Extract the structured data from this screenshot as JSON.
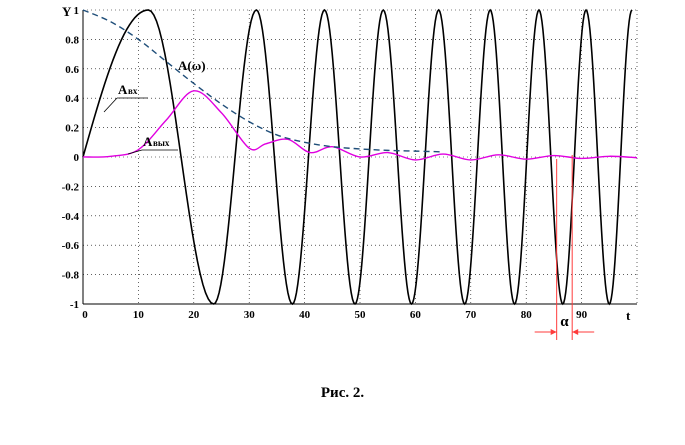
{
  "chart_data": {
    "type": "line",
    "title": "",
    "xlabel": "t",
    "ylabel": "Y",
    "xlim": [
      0,
      100
    ],
    "ylim": [
      -1,
      1
    ],
    "x_ticks": [
      0,
      10,
      20,
      30,
      40,
      50,
      60,
      70,
      80,
      90
    ],
    "y_ticks": [
      -1,
      -0.8,
      -0.6,
      -0.4,
      -0.2,
      0,
      0.2,
      0.4,
      0.6,
      0.8,
      1
    ],
    "x_tick_labels": [
      "0",
      "10",
      "20",
      "30",
      "40",
      "50",
      "60",
      "70",
      "80",
      "90"
    ],
    "y_tick_labels": [
      "-1",
      "-0.8",
      "-0.6",
      "-0.4",
      "-0.2",
      "0",
      "0.2",
      "0.4",
      "0.6",
      "0.8",
      "1"
    ],
    "grid": "dotted",
    "series": [
      {
        "name": "A вх",
        "color": "#000000",
        "style": "solid",
        "x": [
          0,
          11.8,
          23.6,
          31.3,
          37.8,
          43.6,
          49.1,
          54.2,
          59.3,
          64.2,
          68.9,
          73.5,
          77.9,
          82.3,
          86.6,
          90.8,
          95.0,
          99.1
        ],
        "y": [
          0,
          1,
          -1,
          1,
          -1,
          1,
          -1,
          1,
          -1,
          1,
          -1,
          1,
          -1,
          1,
          -1,
          1,
          -1,
          1
        ]
      },
      {
        "name": "A вых",
        "color": "#e000e0",
        "style": "solid",
        "x": [
          0,
          5,
          10,
          15,
          20,
          25,
          30,
          33,
          37,
          41,
          45,
          50,
          55,
          60,
          65,
          70,
          75,
          80,
          85,
          90,
          95,
          100
        ],
        "y": [
          0,
          0.005,
          0.05,
          0.25,
          0.45,
          0.3,
          0.06,
          0.09,
          0.12,
          0.03,
          0.07,
          0.0,
          0.03,
          -0.02,
          0.02,
          -0.02,
          0.015,
          -0.015,
          0.01,
          -0.01,
          0.005,
          -0.005
        ]
      },
      {
        "name": "A(ω)",
        "color": "#1f4e79",
        "style": "dashed",
        "x": [
          0,
          5,
          10,
          15,
          20,
          25,
          30,
          35,
          40,
          45,
          50,
          55,
          60,
          65
        ],
        "y": [
          1.0,
          0.92,
          0.8,
          0.65,
          0.5,
          0.36,
          0.24,
          0.15,
          0.1,
          0.07,
          0.055,
          0.045,
          0.04,
          0.035
        ]
      }
    ],
    "annotations": {
      "input_label": "A",
      "input_sub": "вх",
      "output_label": "A",
      "output_sub": "вых",
      "envelope_label": "A(ω)",
      "alpha_label": "α",
      "alpha_x": [
        85.5,
        88.3
      ],
      "alpha_color": "#ff3b3b"
    }
  },
  "caption": "Рис. 2."
}
